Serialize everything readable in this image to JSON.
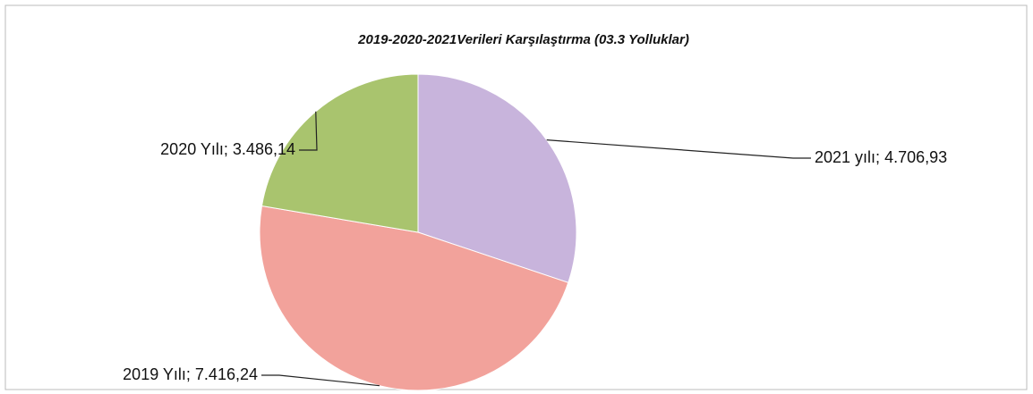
{
  "chart_data": {
    "type": "pie",
    "title": "2019-2020-2021Verileri Karşılaştırma  (03.3 Yolluklar)",
    "categories": [
      "2021 yılı",
      "2019 Yılı",
      "2020 Yılı"
    ],
    "values": [
      4706.93,
      7416.24,
      3486.14
    ],
    "value_labels": [
      "4.706,93",
      "7.416,24",
      "3.486,14"
    ],
    "label_separator": "; ",
    "colors": [
      "#c8b4dc",
      "#f2a29b",
      "#a9c46e"
    ]
  }
}
